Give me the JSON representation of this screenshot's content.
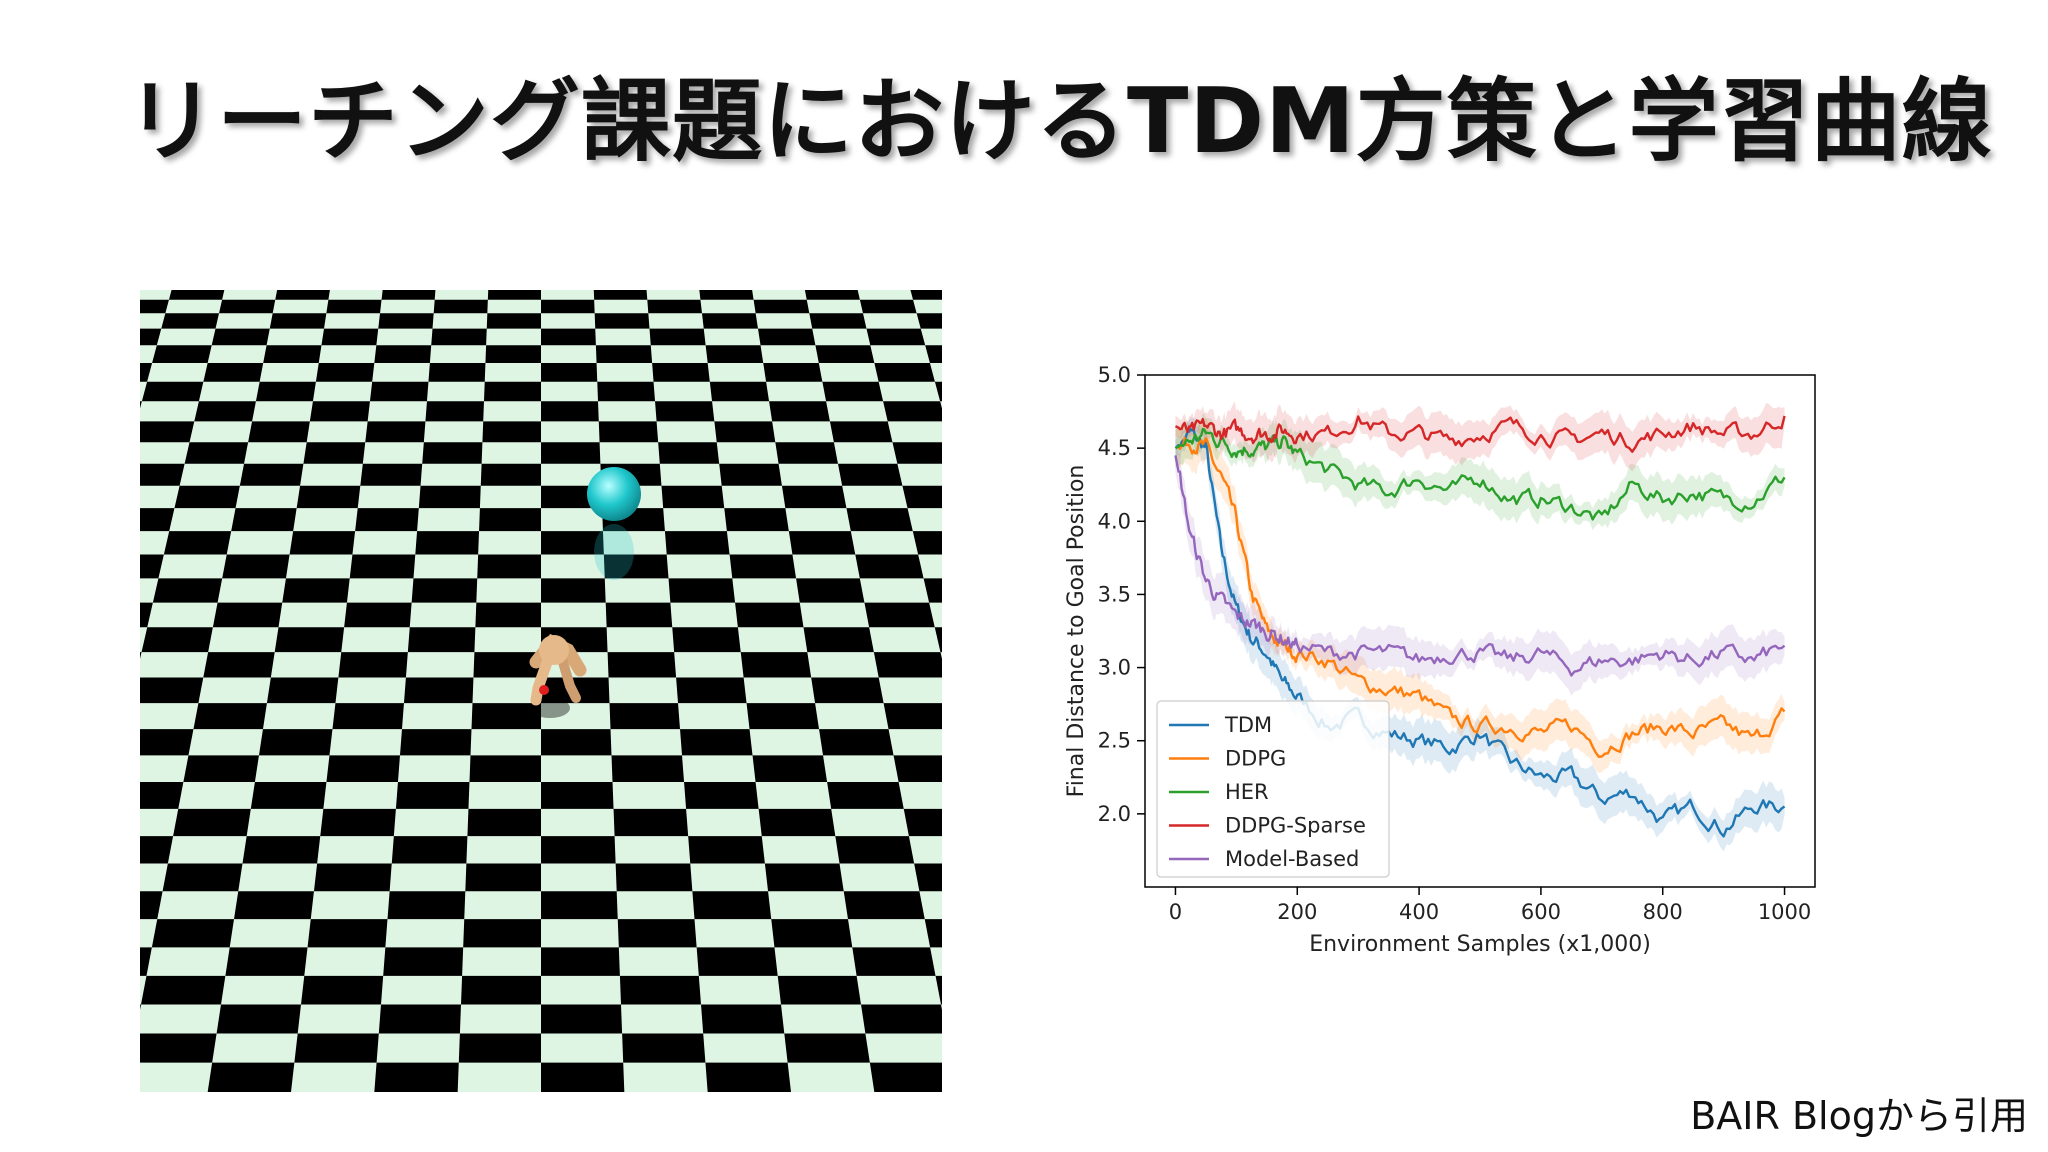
{
  "slide": {
    "title": "リーチング課題におけるTDM方策と学習曲線",
    "source_credit": "BAIR Blogから引用"
  },
  "scene": {
    "description_icon": "ant-robot-icon",
    "floor_colors": [
      "#dff5e4",
      "#000000"
    ],
    "goal_color": "#1fc7cc",
    "robot_color": "#e6b98a"
  },
  "chart_data": {
    "type": "line",
    "title": "",
    "xlabel": "Environment Samples (x1,000)",
    "ylabel": "Final Distance to Goal Position",
    "xlim": [
      -50,
      1050
    ],
    "ylim": [
      1.5,
      5.0
    ],
    "xticks": [
      0,
      200,
      400,
      600,
      800,
      1000
    ],
    "yticks": [
      2.0,
      2.5,
      3.0,
      3.5,
      4.0,
      4.5,
      5.0
    ],
    "ytick_labels": [
      "2.0",
      "2.5",
      "3.0",
      "3.5",
      "4.0",
      "4.5",
      "5.0"
    ],
    "grid": false,
    "legend_position": "lower-left",
    "x": [
      0,
      25,
      50,
      75,
      100,
      125,
      150,
      175,
      200,
      250,
      300,
      350,
      400,
      450,
      500,
      550,
      600,
      650,
      700,
      750,
      800,
      850,
      900,
      950,
      1000
    ],
    "series": [
      {
        "name": "TDM",
        "color": "#1f77b4",
        "values": [
          4.5,
          4.6,
          4.5,
          3.8,
          3.4,
          3.2,
          3.1,
          2.9,
          2.8,
          2.6,
          2.65,
          2.55,
          2.5,
          2.45,
          2.55,
          2.35,
          2.25,
          2.25,
          2.1,
          2.15,
          1.95,
          2.05,
          1.9,
          2.05,
          2.05
        ]
      },
      {
        "name": "DDPG",
        "color": "#ff7f0e",
        "values": [
          4.5,
          4.55,
          4.5,
          4.3,
          4.0,
          3.5,
          3.25,
          3.15,
          3.1,
          3.05,
          2.9,
          2.85,
          2.8,
          2.65,
          2.6,
          2.6,
          2.55,
          2.6,
          2.45,
          2.55,
          2.6,
          2.55,
          2.6,
          2.5,
          2.7
        ]
      },
      {
        "name": "HER",
        "color": "#2ca02c",
        "values": [
          4.5,
          4.55,
          4.6,
          4.55,
          4.5,
          4.5,
          4.5,
          4.55,
          4.45,
          4.35,
          4.25,
          4.2,
          4.3,
          4.2,
          4.3,
          4.15,
          4.15,
          4.1,
          4.0,
          4.25,
          4.15,
          4.2,
          4.15,
          4.15,
          4.3
        ]
      },
      {
        "name": "DDPG-Sparse",
        "color": "#d62728",
        "values": [
          4.65,
          4.6,
          4.65,
          4.6,
          4.62,
          4.6,
          4.6,
          4.62,
          4.6,
          4.6,
          4.7,
          4.6,
          4.6,
          4.55,
          4.6,
          4.65,
          4.6,
          4.55,
          4.6,
          4.55,
          4.6,
          4.65,
          4.6,
          4.6,
          4.72
        ]
      },
      {
        "name": "Model-Based",
        "color": "#9467bd",
        "values": [
          4.45,
          3.9,
          3.6,
          3.45,
          3.35,
          3.3,
          3.25,
          3.2,
          3.15,
          3.1,
          3.1,
          3.1,
          3.05,
          3.1,
          3.1,
          3.05,
          3.1,
          3.0,
          3.05,
          3.05,
          3.1,
          3.05,
          3.1,
          3.05,
          3.15
        ]
      }
    ]
  }
}
